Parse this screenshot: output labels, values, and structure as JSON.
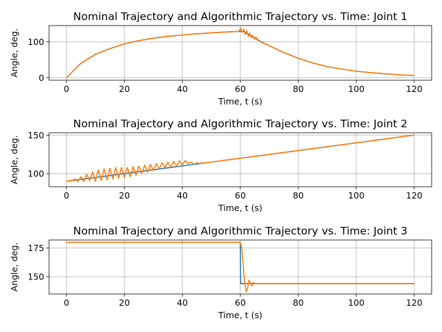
{
  "chart_data": [
    {
      "type": "line",
      "title": "Nominal Trajectory and Algorithmic Trajectory vs. Time: Joint 1",
      "xlabel": "Time, t (s)",
      "ylabel": "Angle, deg.",
      "xlim": [
        -6,
        126
      ],
      "ylim": [
        -7,
        145
      ],
      "xticks": [
        0,
        20,
        40,
        60,
        80,
        100,
        120
      ],
      "yticks": [
        0,
        100
      ],
      "grid": true,
      "series": [
        {
          "color": "#1f77b4",
          "x": [
            0,
            5,
            10,
            15,
            20,
            25,
            30,
            35,
            40,
            45,
            50,
            55,
            60,
            61,
            62,
            63,
            64,
            65,
            66,
            67,
            68,
            70,
            75,
            80,
            85,
            90,
            95,
            100,
            105,
            110,
            115,
            120
          ],
          "y": [
            0,
            40,
            65,
            81,
            94,
            103,
            110,
            115,
            119,
            122,
            125,
            127,
            129,
            129,
            125,
            120,
            115,
            110,
            106,
            101,
            97,
            89,
            70,
            54,
            41,
            31,
            24,
            18,
            14,
            11,
            8,
            6
          ]
        },
        {
          "color": "#ff7f0e",
          "x": [
            0,
            5,
            10,
            15,
            20,
            25,
            30,
            35,
            40,
            45,
            50,
            55,
            59.5,
            60.2,
            60.6,
            61.2,
            61.7,
            62.2,
            62.8,
            63.3,
            63.8,
            64.3,
            64.9,
            65.4,
            66,
            67,
            68,
            70,
            75,
            80,
            85,
            90,
            95,
            100,
            105,
            110,
            115,
            120
          ],
          "y": [
            0,
            40,
            65,
            81,
            94,
            103,
            110,
            115,
            119,
            122,
            125,
            127,
            129,
            138,
            126,
            135,
            120,
            131,
            115,
            124,
            111,
            118,
            107,
            113,
            104,
            100,
            96,
            89,
            70,
            54,
            41,
            31,
            24,
            18,
            14,
            11,
            8,
            6
          ]
        }
      ]
    },
    {
      "type": "line",
      "title": "Nominal Trajectory and Algorithmic Trajectory vs. Time: Joint 2",
      "xlabel": "Time, t (s)",
      "ylabel": "Angle, deg.",
      "xlim": [
        -6,
        126
      ],
      "ylim": [
        83,
        153
      ],
      "xticks": [
        0,
        20,
        40,
        60,
        80,
        100,
        120
      ],
      "yticks": [
        100,
        150
      ],
      "grid": true,
      "series": [
        {
          "color": "#1f77b4",
          "x": [
            0,
            120
          ],
          "y": [
            90,
            150
          ]
        },
        {
          "color": "#ff7f0e",
          "x": [
            0,
            1,
            2,
            3,
            4,
            5,
            6,
            7,
            8,
            9,
            10,
            11,
            12,
            13,
            14,
            15,
            16,
            17,
            18,
            19,
            20,
            21,
            22,
            23,
            24,
            25,
            26,
            27,
            28,
            29,
            30,
            31,
            32,
            33,
            34,
            35,
            36,
            37,
            38,
            39,
            40,
            41,
            42,
            43,
            44,
            45,
            46,
            47,
            48,
            120
          ],
          "y": [
            90,
            91,
            91,
            93,
            90,
            96,
            90,
            99,
            91,
            102,
            90,
            105,
            91,
            106,
            92,
            107,
            93,
            108,
            94,
            108,
            95,
            108,
            96,
            109,
            98,
            110,
            100,
            111,
            102,
            112,
            104,
            113,
            106,
            114,
            108,
            115,
            108,
            116,
            110,
            117,
            111,
            117,
            113,
            115,
            112,
            114,
            113,
            114,
            114,
            150
          ]
        }
      ]
    },
    {
      "type": "line",
      "title": "Nominal Trajectory and Algorithmic Trajectory vs. Time: Joint 3",
      "xlabel": "Time, t (s)",
      "ylabel": "Angle, deg.",
      "xlim": [
        -6,
        126
      ],
      "ylim": [
        135,
        182
      ],
      "xticks": [
        0,
        20,
        40,
        60,
        80,
        100,
        120
      ],
      "yticks": [
        150,
        175
      ],
      "grid": true,
      "series": [
        {
          "color": "#1f77b4",
          "x": [
            0,
            60,
            60.1,
            120
          ],
          "y": [
            180,
            180,
            144,
            144
          ]
        },
        {
          "color": "#ff7f0e",
          "x": [
            0,
            60,
            60.5,
            61,
            61.5,
            62,
            62.5,
            63,
            63.5,
            64,
            64.5,
            65,
            66,
            120
          ],
          "y": [
            180,
            180,
            175,
            160,
            145,
            137,
            140,
            147,
            145,
            142,
            145,
            144,
            144,
            144
          ]
        }
      ]
    }
  ]
}
